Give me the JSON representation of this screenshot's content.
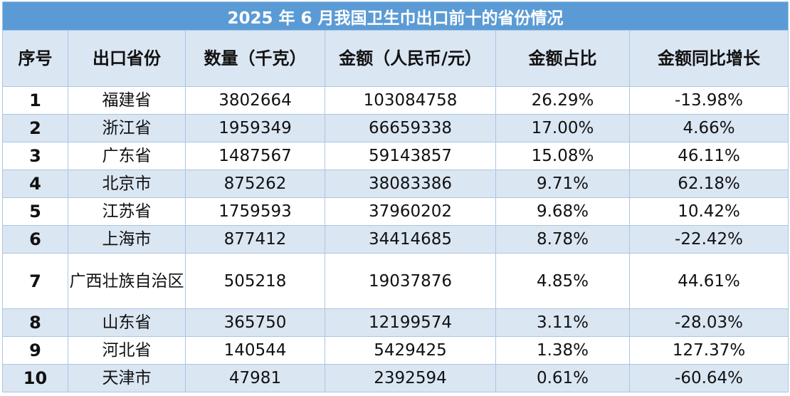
{
  "title": "2025 年 6 月我国卫生巾出口前十的省份情况",
  "headers": [
    "序号",
    "出口省份",
    "数量（千克）",
    "金额（人民币/元）",
    "金额占比",
    "金额同比增长"
  ],
  "rows": [
    {
      "no": "1",
      "province": "福建省",
      "quantity": "3802664",
      "amount": "103084758",
      "share": "26.29%",
      "yoy": "-13.98%"
    },
    {
      "no": "2",
      "province": "浙江省",
      "quantity": "1959349",
      "amount": "66659338",
      "share": "17.00%",
      "yoy": "4.66%"
    },
    {
      "no": "3",
      "province": "广东省",
      "quantity": "1487567",
      "amount": "59143857",
      "share": "15.08%",
      "yoy": "46.11%"
    },
    {
      "no": "4",
      "province": "北京市",
      "quantity": "875262",
      "amount": "38083386",
      "share": "9.71%",
      "yoy": "62.18%"
    },
    {
      "no": "5",
      "province": "江苏省",
      "quantity": "1759593",
      "amount": "37960202",
      "share": "9.68%",
      "yoy": "10.42%"
    },
    {
      "no": "6",
      "province": "上海市",
      "quantity": "877412",
      "amount": "34414685",
      "share": "8.78%",
      "yoy": "-22.42%"
    },
    {
      "no": "7",
      "province": "广西壮族自治区",
      "quantity": "505218",
      "amount": "19037876",
      "share": "4.85%",
      "yoy": "44.61%"
    },
    {
      "no": "8",
      "province": "山东省",
      "quantity": "365750",
      "amount": "12199574",
      "share": "3.11%",
      "yoy": "-28.03%"
    },
    {
      "no": "9",
      "province": "河北省",
      "quantity": "140544",
      "amount": "5429425",
      "share": "1.38%",
      "yoy": "127.37%"
    },
    {
      "no": "10",
      "province": "天津市",
      "quantity": "47981",
      "amount": "2392594",
      "share": "0.61%",
      "yoy": "-60.64%"
    }
  ],
  "colors": {
    "title_bg": "#5b9bd5",
    "header_bg": "#dbe6f3",
    "stripe_bg": "#dbe6f3",
    "border": "#a9c6e4"
  }
}
